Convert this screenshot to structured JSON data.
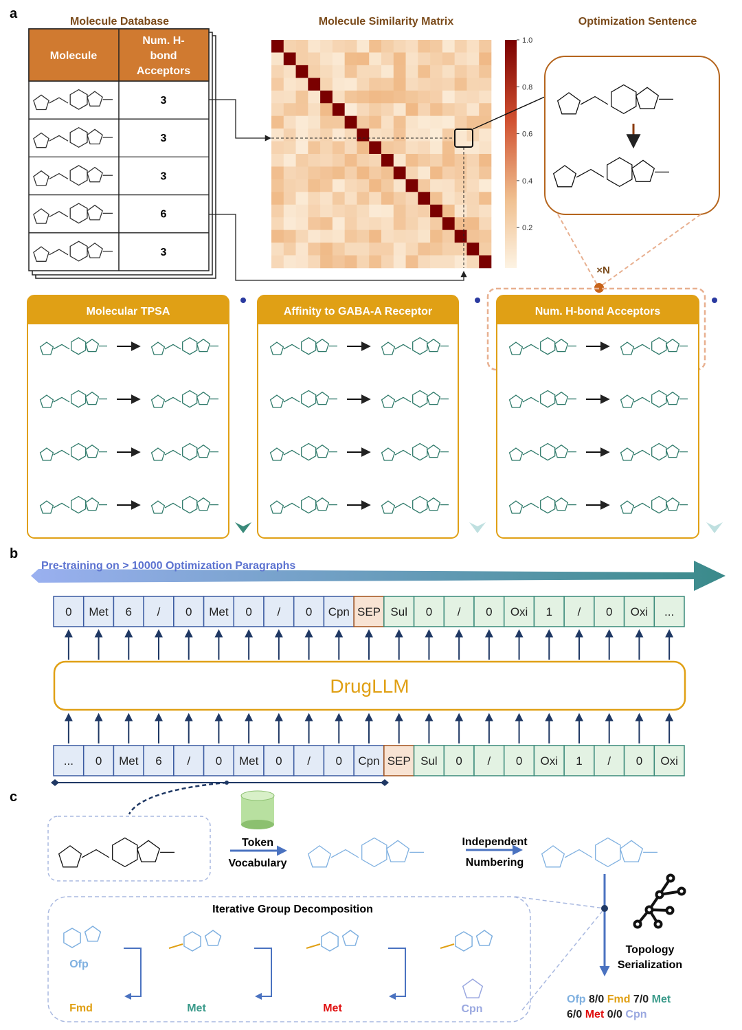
{
  "panel_labels": {
    "a": "a",
    "b": "b",
    "c": "c"
  },
  "section_a": {
    "database_title": "Molecule Database",
    "table_headers": [
      "Molecule",
      "Num. H-",
      "bond",
      "Acceptors"
    ],
    "table_values": [
      "3",
      "3",
      "3",
      "6",
      "3"
    ],
    "matrix_title": "Molecule Similarity Matrix",
    "colorbar_ticks": [
      "1.0",
      "0.8",
      "0.6",
      "0.4",
      "0.2"
    ],
    "sentence_title": "Optimization Sentence",
    "repeat_label": "×N",
    "tasks": [
      {
        "title": "Molecular TPSA"
      },
      {
        "title": "Affinity to GABA-A Receptor"
      },
      {
        "title": "Num. H-bond Acceptors"
      }
    ],
    "colors": {
      "table_header": "#d07a30",
      "title": "#7a4a1a",
      "task_header": "#e0a015",
      "molecule": "#2f7a6a",
      "matrix_high": "#7a0000",
      "matrix_low": "#fdf3e3"
    }
  },
  "section_b": {
    "pretraining_label": "Pre-training on > 10000 Optimization Paragraphs",
    "model_name": "DrugLLM",
    "output_tokens": [
      "0",
      "Met",
      "6",
      "/",
      "0",
      "Met",
      "0",
      "/",
      "0",
      "Cpn",
      "SEP",
      "Sul",
      "0",
      "/",
      "0",
      "Oxi",
      "1",
      "/",
      "0",
      "Oxi",
      "..."
    ],
    "input_tokens": [
      "...",
      "0",
      "Met",
      "6",
      "/",
      "0",
      "Met",
      "0",
      "/",
      "0",
      "Cpn",
      "SEP",
      "Sul",
      "0",
      "/",
      "0",
      "Oxi",
      "1",
      "/",
      "0",
      "Oxi"
    ],
    "colors": {
      "source": "#e3ebf7",
      "target": "#e3f2e3",
      "sep": "#f8e3d3",
      "model": "#e0a015"
    }
  },
  "section_c": {
    "token_label": [
      "Token",
      "Vocabulary"
    ],
    "numbering_label": [
      "Independent",
      "Numbering"
    ],
    "decomposition_title": "Iterative Group Decomposition",
    "topology_label": [
      "Topology",
      "Serialization"
    ],
    "groups": [
      {
        "name": "Ofp",
        "color": "#7fb0e0"
      },
      {
        "name": "Fmd",
        "color": "#e0a015"
      },
      {
        "name": "Met",
        "color": "#3a9a8a"
      },
      {
        "name": "Met",
        "color": "#e01010"
      },
      {
        "name": "Cpn",
        "color": "#9aa8e0"
      }
    ],
    "serialization": [
      [
        {
          "t": "Ofp",
          "c": "#7fb0e0"
        },
        {
          "t": " 8/0 ",
          "c": "#222"
        },
        {
          "t": "Fmd",
          "c": "#e0a015"
        },
        {
          "t": " 7/0 ",
          "c": "#222"
        },
        {
          "t": "Met",
          "c": "#3a9a8a"
        }
      ],
      [
        {
          "t": "6/0 ",
          "c": "#222"
        },
        {
          "t": "Met",
          "c": "#e01010"
        },
        {
          "t": " 0/0 ",
          "c": "#222"
        },
        {
          "t": "Cpn",
          "c": "#9aa8e0"
        }
      ]
    ]
  }
}
